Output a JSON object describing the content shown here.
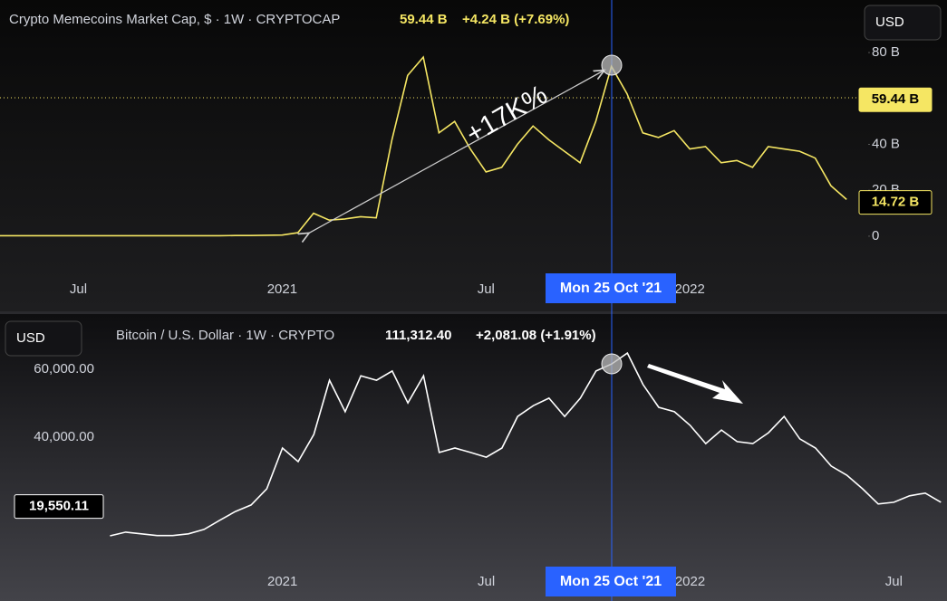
{
  "chart_data": [
    {
      "type": "line",
      "title": "Crypto Memecoins Market Cap, $ · 1W · CRYPTOCAP",
      "header_values": [
        "59.44 B",
        "+4.24 B (+7.69%)"
      ],
      "currency": "USD",
      "color": "#f5e663",
      "categories": [
        null,
        null,
        null,
        null,
        null,
        "Jul",
        null,
        null,
        null,
        null,
        null,
        null,
        null,
        null,
        null,
        null,
        null,
        null,
        "2021",
        null,
        null,
        null,
        null,
        null,
        null,
        null,
        null,
        null,
        null,
        null,
        null,
        "Jul",
        null,
        null,
        null,
        null,
        null,
        null,
        null,
        null,
        null,
        null,
        null,
        null,
        "2022",
        null,
        null,
        null,
        null,
        null,
        null,
        null,
        null,
        null,
        null
      ],
      "values": [
        0.2,
        0.2,
        0.2,
        0.2,
        0.2,
        0.2,
        0.2,
        0.2,
        0.2,
        0.2,
        0.2,
        0.2,
        0.2,
        0.2,
        0.2,
        0.3,
        0.3,
        0.4,
        0.5,
        1.5,
        10,
        7,
        7.5,
        8.5,
        8,
        42,
        70,
        78,
        45,
        50,
        38,
        28,
        30,
        40,
        48,
        42,
        37,
        32,
        50,
        74,
        62,
        45,
        43,
        46,
        38,
        39,
        32,
        33,
        30,
        39,
        38,
        37,
        34,
        22,
        16
      ],
      "ylim": [
        -15.4,
        102.9
      ],
      "yticks": [
        0,
        {
          "value": 20,
          "label": "20 B"
        },
        {
          "value": 40,
          "label": "40 B"
        },
        {
          "value": 80,
          "label": "80 B"
        }
      ],
      "price_labels": [
        {
          "value": 59.44,
          "label": "59.44 B"
        },
        {
          "value": 14.72,
          "label": "14.72 B"
        }
      ],
      "crosshair_label": "Mon 25 Oct '21",
      "annotation": "+17K%"
    },
    {
      "type": "line",
      "title": "Bitcoin / U.S. Dollar · 1W · CRYPTO",
      "header_values": [
        "111,312.40",
        "+2,081.08 (+1.91%)"
      ],
      "currency": "USD",
      "color": "#ffffff",
      "categories": [
        null,
        null,
        null,
        null,
        null,
        null,
        null,
        null,
        null,
        null,
        null,
        "2021",
        null,
        null,
        null,
        null,
        null,
        null,
        null,
        null,
        null,
        null,
        null,
        null,
        "Jul",
        null,
        null,
        null,
        null,
        null,
        null,
        null,
        null,
        null,
        null,
        null,
        null,
        "2022",
        null,
        null,
        null,
        null,
        null,
        null,
        null,
        null,
        null,
        null,
        null,
        null,
        "Jul",
        null,
        null,
        null
      ],
      "values": [
        10900,
        12000,
        11500,
        11000,
        11000,
        11500,
        12800,
        15500,
        18100,
        20000,
        24800,
        36800,
        32800,
        40800,
        56800,
        47500,
        58100,
        56800,
        59500,
        50100,
        58100,
        35500,
        36800,
        35500,
        34100,
        36800,
        46100,
        49300,
        51500,
        46100,
        51500,
        59500,
        61600,
        64800,
        55500,
        48800,
        47500,
        43500,
        38100,
        42100,
        38700,
        38100,
        41300,
        46100,
        39500,
        36800,
        31500,
        28800,
        24800,
        20300,
        20800,
        22700,
        23500,
        20800
      ],
      "ylim": [
        2100,
        75500
      ],
      "yticks": [
        {
          "value": 40000,
          "label": "40,000.00"
        },
        {
          "value": 60000,
          "label": "60,000.00"
        }
      ],
      "price_labels": [
        {
          "value": 19550.11,
          "label": "19,550.11"
        }
      ],
      "crosshair_label": "Mon 25 Oct '21"
    }
  ]
}
